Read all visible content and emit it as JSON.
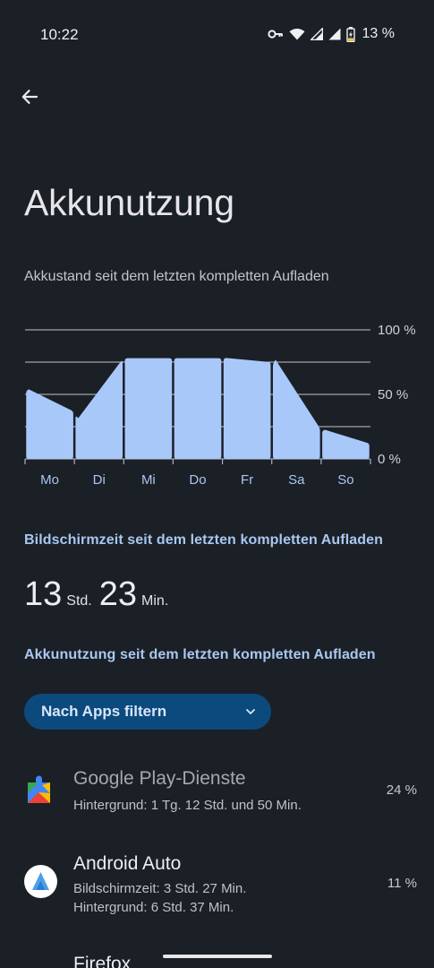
{
  "status_bar": {
    "time": "10:22",
    "battery_percent": "13 %",
    "icons": [
      "vpn-key-icon",
      "wifi-icon",
      "signal-icon",
      "signal-icon",
      "battery-charging-icon"
    ]
  },
  "header": {
    "back_icon": "arrow-back-icon",
    "title": "Akkunutzung"
  },
  "chart": {
    "subtitle": "Akkustand seit dem letzten kompletten Aufladen"
  },
  "chart_data": {
    "type": "area",
    "title": "",
    "xlabel": "",
    "ylabel": "",
    "ylim": [
      0,
      100
    ],
    "y_ticks": [
      "100 %",
      "50 %",
      "0 %"
    ],
    "categories": [
      "Mo",
      "Di",
      "Mi",
      "Do",
      "Fr",
      "Sa",
      "So"
    ],
    "bars": [
      {
        "day": "Mo",
        "start": 53,
        "end": 37
      },
      {
        "day": "Di",
        "start": 34,
        "end": 77
      },
      {
        "day": "Mi",
        "start": 78,
        "end": 78
      },
      {
        "day": "Do",
        "start": 78,
        "end": 78
      },
      {
        "day": "Fr",
        "start": 78,
        "end": 75
      },
      {
        "day": "Sa",
        "start": 74,
        "end": 24
      },
      {
        "day": "So",
        "start": 22,
        "end": 12
      }
    ],
    "grid": true,
    "fill_color": "#a8c8fa",
    "grid_color": "#e0e2e6"
  },
  "screen_time": {
    "header": "Bildschirmzeit seit dem letzten kompletten Aufladen",
    "hours": "13",
    "hours_unit": "Std.",
    "minutes": "23",
    "minutes_unit": "Min."
  },
  "usage": {
    "header": "Akkunutzung seit dem letzten kompletten Aufladen",
    "filter_label": "Nach Apps filtern",
    "filter_icon": "chevron-down-icon",
    "apps": [
      {
        "name": "Google Play-Dienste",
        "icon": "google-play-services-icon",
        "details": [
          "Hintergrund: 1 Tg. 12 Std. und 50 Min."
        ],
        "percent": "24 %"
      },
      {
        "name": "Android Auto",
        "icon": "android-auto-icon",
        "details": [
          "Bildschirmzeit: 3 Std. 27 Min.",
          "Hintergrund: 6 Std. 37 Min."
        ],
        "percent": "11 %"
      },
      {
        "name": "Firefox",
        "icon": "firefox-icon",
        "details": [],
        "percent": ""
      }
    ]
  },
  "colors": {
    "background": "#1b1f26",
    "accent": "#a8c8f0",
    "chip": "#0c4a7e"
  }
}
